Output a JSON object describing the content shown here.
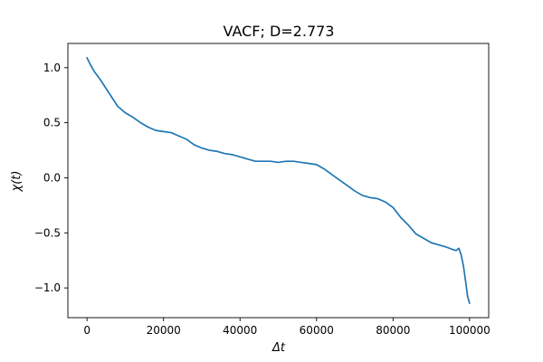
{
  "chart_data": {
    "type": "line",
    "title": "VACF; D=2.773",
    "xlabel": "Δt",
    "ylabel": "χ(t)",
    "xlim": [
      -5000,
      105000
    ],
    "ylim": [
      -1.27,
      1.22
    ],
    "x_ticks": [
      0,
      20000,
      40000,
      60000,
      80000,
      100000
    ],
    "x_tick_labels": [
      "0",
      "20000",
      "40000",
      "60000",
      "80000",
      "100000"
    ],
    "y_ticks": [
      1.0,
      0.5,
      0.0,
      -0.5,
      -1.0
    ],
    "y_tick_labels": [
      "1.0",
      "0.5",
      "0.0",
      "−0.5",
      "−1.0"
    ],
    "grid": false,
    "colors": {
      "line": "#1f77b4",
      "axes": "#000000",
      "background": "#ffffff"
    },
    "series": [
      {
        "x": [
          0,
          1000,
          2000,
          3500,
          5000,
          6500,
          8000,
          10000,
          12000,
          14000,
          16000,
          18000,
          20000,
          22000,
          24000,
          26000,
          28000,
          30000,
          32000,
          34000,
          36000,
          38000,
          40000,
          42000,
          44000,
          46000,
          48000,
          50000,
          52000,
          54000,
          56000,
          58000,
          60000,
          62000,
          64000,
          66000,
          68000,
          70000,
          72000,
          74000,
          76000,
          78000,
          80000,
          82000,
          84000,
          86000,
          88000,
          90000,
          92000,
          94000,
          95500,
          96500,
          97200,
          97800,
          98400,
          99000,
          99500,
          100000
        ],
        "y": [
          1.09,
          1.02,
          0.96,
          0.89,
          0.81,
          0.73,
          0.65,
          0.59,
          0.55,
          0.5,
          0.46,
          0.43,
          0.42,
          0.41,
          0.38,
          0.35,
          0.3,
          0.27,
          0.25,
          0.24,
          0.22,
          0.21,
          0.19,
          0.17,
          0.15,
          0.15,
          0.15,
          0.14,
          0.15,
          0.15,
          0.14,
          0.13,
          0.12,
          0.08,
          0.03,
          -0.02,
          -0.07,
          -0.12,
          -0.16,
          -0.18,
          -0.19,
          -0.22,
          -0.27,
          -0.36,
          -0.43,
          -0.51,
          -0.55,
          -0.59,
          -0.61,
          -0.63,
          -0.65,
          -0.66,
          -0.64,
          -0.7,
          -0.8,
          -0.95,
          -1.08,
          -1.14
        ]
      }
    ]
  }
}
